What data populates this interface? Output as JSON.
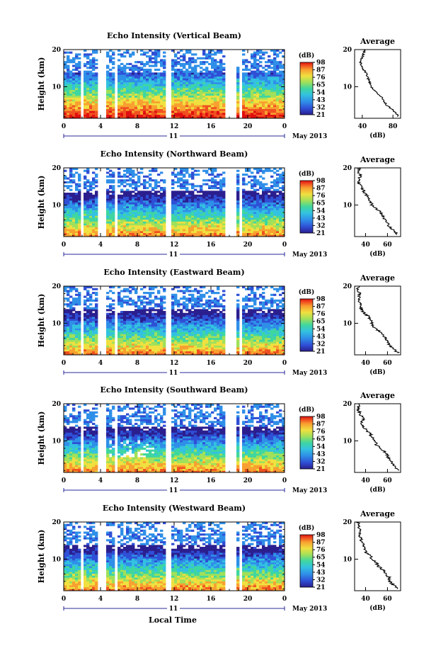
{
  "figure": {
    "xlabel_bottom": "Local Time",
    "panel_ylabel": "Height (km)",
    "date_label": "11",
    "month_label": "May 2013",
    "avg_title": "Average",
    "avg_xlabel": "(dB)",
    "colorbar_label": "(dB)"
  },
  "colors": {
    "colormap": [
      "#2b1f8f",
      "#2f4fd6",
      "#2f8fe8",
      "#33c2e0",
      "#3fd6a0",
      "#a0e05a",
      "#f0e040",
      "#f8a030",
      "#f05020",
      "#e01010"
    ]
  },
  "chart_data": [
    {
      "type": "heatmap",
      "title": "Echo Intensity (Vertical Beam)",
      "ylabel": "Height (km)",
      "x_ticks": [
        "0",
        "4",
        "8",
        "12",
        "16",
        "20",
        "0"
      ],
      "y_ticks": [
        "10",
        "20"
      ],
      "xlim": [
        0,
        24
      ],
      "ylim": [
        1.5,
        20
      ],
      "colorbar_ticks": [
        "21",
        "32",
        "43",
        "54",
        "65",
        "76",
        "87",
        "98"
      ],
      "gaps_hours": [
        [
          1.8,
          2.3
        ],
        [
          3.8,
          4.7
        ],
        [
          5.5,
          5.8
        ],
        [
          11.1,
          11.6
        ],
        [
          17.5,
          18.9
        ],
        [
          19.2,
          19.4
        ]
      ],
      "average": {
        "title": "Average",
        "xlabel": "(dB)",
        "x_ticks": [
          "40",
          "80"
        ],
        "xlim": [
          30,
          90
        ],
        "y_ticks": [
          "10",
          "20"
        ],
        "profile": [
          [
            2,
            86
          ],
          [
            3,
            84
          ],
          [
            4,
            78
          ],
          [
            5,
            72
          ],
          [
            6,
            68
          ],
          [
            7,
            66
          ],
          [
            8,
            60
          ],
          [
            9,
            56
          ],
          [
            10,
            52
          ],
          [
            11,
            50
          ],
          [
            12,
            48
          ],
          [
            13,
            46
          ],
          [
            14,
            44
          ],
          [
            15,
            40
          ],
          [
            16,
            38
          ],
          [
            17,
            38
          ],
          [
            18,
            40
          ],
          [
            19,
            42
          ],
          [
            20,
            44
          ]
        ]
      }
    },
    {
      "type": "heatmap",
      "title": "Echo Intensity (Northward Beam)",
      "ylabel": "Height (km)",
      "x_ticks": [
        "0",
        "4",
        "8",
        "12",
        "16",
        "20",
        "0"
      ],
      "y_ticks": [
        "10",
        "20"
      ],
      "xlim": [
        0,
        24
      ],
      "ylim": [
        1.5,
        20
      ],
      "colorbar_ticks": [
        "21",
        "32",
        "43",
        "54",
        "65",
        "76",
        "87",
        "98"
      ],
      "gaps_hours": [
        [
          1.8,
          2.3
        ],
        [
          3.8,
          4.7
        ],
        [
          5.5,
          5.8
        ],
        [
          11.1,
          11.6
        ],
        [
          17.5,
          18.9
        ],
        [
          19.2,
          19.4
        ]
      ],
      "average": {
        "title": "Average",
        "xlabel": "(dB)",
        "x_ticks": [
          "40",
          "60"
        ],
        "xlim": [
          30,
          72
        ],
        "y_ticks": [
          "10",
          "20"
        ],
        "profile": [
          [
            2,
            70
          ],
          [
            3,
            66
          ],
          [
            4,
            62
          ],
          [
            5,
            60
          ],
          [
            6,
            58
          ],
          [
            7,
            56
          ],
          [
            8,
            54
          ],
          [
            9,
            50
          ],
          [
            10,
            46
          ],
          [
            11,
            44
          ],
          [
            12,
            42
          ],
          [
            13,
            40
          ],
          [
            14,
            38
          ],
          [
            15,
            36
          ],
          [
            16,
            34
          ],
          [
            17,
            34
          ],
          [
            18,
            35
          ],
          [
            19,
            33
          ],
          [
            20,
            34
          ]
        ]
      }
    },
    {
      "type": "heatmap",
      "title": "Echo Intensity (Eastward Beam)",
      "ylabel": "Height (km)",
      "x_ticks": [
        "0",
        "4",
        "8",
        "12",
        "16",
        "20",
        "0"
      ],
      "y_ticks": [
        "10",
        "20"
      ],
      "xlim": [
        0,
        24
      ],
      "ylim": [
        1.5,
        20
      ],
      "colorbar_ticks": [
        "21",
        "32",
        "43",
        "54",
        "65",
        "76",
        "87",
        "98"
      ],
      "gaps_hours": [
        [
          1.8,
          2.3
        ],
        [
          3.8,
          4.7
        ],
        [
          5.5,
          5.8
        ],
        [
          11.1,
          11.6
        ],
        [
          17.5,
          18.9
        ],
        [
          19.2,
          19.4
        ]
      ],
      "average": {
        "title": "Average",
        "xlabel": "(dB)",
        "x_ticks": [
          "40",
          "60"
        ],
        "xlim": [
          30,
          72
        ],
        "y_ticks": [
          "10",
          "20"
        ],
        "profile": [
          [
            2,
            70
          ],
          [
            3,
            66
          ],
          [
            4,
            62
          ],
          [
            5,
            60
          ],
          [
            6,
            58
          ],
          [
            7,
            56
          ],
          [
            8,
            52
          ],
          [
            9,
            48
          ],
          [
            10,
            46
          ],
          [
            11,
            44
          ],
          [
            12,
            42
          ],
          [
            13,
            38
          ],
          [
            14,
            36
          ],
          [
            15,
            36
          ],
          [
            16,
            34
          ],
          [
            17,
            34
          ],
          [
            18,
            35
          ],
          [
            19,
            33
          ],
          [
            20,
            34
          ]
        ]
      }
    },
    {
      "type": "heatmap",
      "title": "Echo Intensity (Southward Beam)",
      "ylabel": "Height (km)",
      "x_ticks": [
        "0",
        "4",
        "8",
        "12",
        "16",
        "20",
        "0"
      ],
      "y_ticks": [
        "10",
        "20"
      ],
      "xlim": [
        0,
        24
      ],
      "ylim": [
        1.5,
        20
      ],
      "colorbar_ticks": [
        "21",
        "32",
        "43",
        "54",
        "65",
        "76",
        "87",
        "98"
      ],
      "gaps_hours": [
        [
          1.8,
          2.3
        ],
        [
          3.8,
          4.7
        ],
        [
          5.5,
          5.8
        ],
        [
          11.1,
          11.6
        ],
        [
          17.5,
          18.9
        ],
        [
          19.2,
          19.4
        ]
      ],
      "average": {
        "title": "Average",
        "xlabel": "(dB)",
        "x_ticks": [
          "40",
          "60"
        ],
        "xlim": [
          30,
          72
        ],
        "y_ticks": [
          "10",
          "20"
        ],
        "profile": [
          [
            2,
            70
          ],
          [
            3,
            67
          ],
          [
            4,
            64
          ],
          [
            5,
            62
          ],
          [
            6,
            60
          ],
          [
            7,
            58
          ],
          [
            8,
            54
          ],
          [
            9,
            50
          ],
          [
            10,
            48
          ],
          [
            11,
            46
          ],
          [
            12,
            44
          ],
          [
            13,
            40
          ],
          [
            14,
            38
          ],
          [
            15,
            36
          ],
          [
            16,
            38
          ],
          [
            17,
            35
          ],
          [
            18,
            34
          ],
          [
            19,
            33
          ],
          [
            20,
            34
          ]
        ]
      }
    },
    {
      "type": "heatmap",
      "title": "Echo Intensity (Westward Beam)",
      "ylabel": "Height (km)",
      "x_ticks": [
        "0",
        "4",
        "8",
        "12",
        "16",
        "20",
        "0"
      ],
      "y_ticks": [
        "10",
        "20"
      ],
      "xlim": [
        0,
        24
      ],
      "ylim": [
        1.5,
        20
      ],
      "colorbar_ticks": [
        "21",
        "32",
        "43",
        "54",
        "65",
        "76",
        "87",
        "98"
      ],
      "gaps_hours": [
        [
          1.8,
          2.3
        ],
        [
          3.8,
          4.7
        ],
        [
          5.5,
          5.8
        ],
        [
          11.1,
          11.6
        ],
        [
          17.5,
          18.9
        ],
        [
          19.2,
          19.4
        ]
      ],
      "average": {
        "title": "Average",
        "xlabel": "(dB)",
        "x_ticks": [
          "40",
          "60"
        ],
        "xlim": [
          30,
          72
        ],
        "y_ticks": [
          "10",
          "20"
        ],
        "profile": [
          [
            2,
            70
          ],
          [
            3,
            66
          ],
          [
            4,
            62
          ],
          [
            5,
            62
          ],
          [
            6,
            58
          ],
          [
            7,
            56
          ],
          [
            8,
            52
          ],
          [
            9,
            50
          ],
          [
            10,
            46
          ],
          [
            11,
            44
          ],
          [
            12,
            40
          ],
          [
            13,
            40
          ],
          [
            14,
            38
          ],
          [
            15,
            36
          ],
          [
            16,
            35
          ],
          [
            17,
            34
          ],
          [
            18,
            35
          ],
          [
            19,
            33
          ],
          [
            20,
            34
          ]
        ]
      }
    }
  ]
}
